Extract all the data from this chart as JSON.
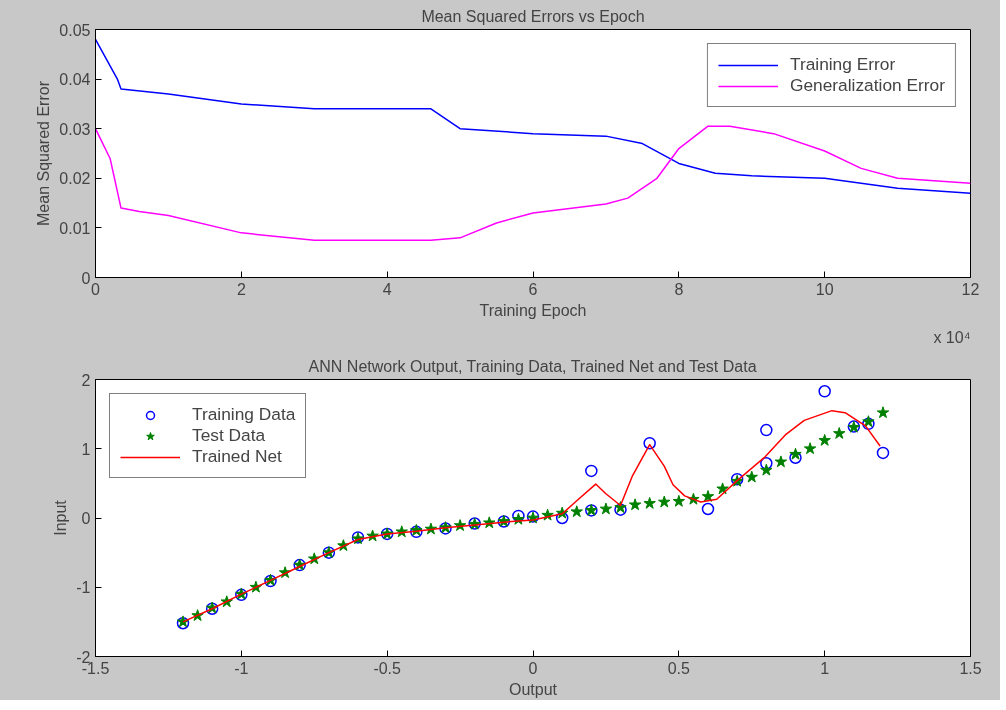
{
  "chart_data": [
    {
      "type": "line",
      "title": "Mean Squared Errors vs Epoch",
      "xlabel": "Training Epoch",
      "ylabel": "Mean Squared Error",
      "xlim": [
        0,
        12
      ],
      "xticks": [
        0,
        2,
        4,
        6,
        8,
        10,
        12
      ],
      "ylim": [
        0,
        0.05
      ],
      "yticks": [
        0,
        0.01,
        0.02,
        0.03,
        0.04,
        0.05
      ],
      "grid": false,
      "legend": "top right",
      "annotations": [
        "x 10⁴"
      ],
      "series": [
        {
          "name": "Training Error",
          "color": "#0000ff",
          "x": [
            0,
            0.3,
            0.35,
            1,
            2,
            3,
            4.6,
            5,
            6,
            7,
            7.5,
            8,
            8.5,
            9,
            10,
            11,
            12
          ],
          "values": [
            0.048,
            0.04,
            0.038,
            0.037,
            0.035,
            0.034,
            0.034,
            0.03,
            0.029,
            0.0285,
            0.027,
            0.023,
            0.021,
            0.0205,
            0.02,
            0.018,
            0.017
          ]
        },
        {
          "name": "Generalization Error",
          "color": "#ff00ff",
          "x": [
            0,
            0.2,
            0.35,
            0.6,
            1,
            2,
            3,
            4.6,
            5,
            5.5,
            6,
            7,
            7.3,
            7.7,
            8,
            8.4,
            8.7,
            9.3,
            10,
            10.5,
            11,
            12
          ],
          "values": [
            0.03,
            0.024,
            0.014,
            0.0133,
            0.0125,
            0.009,
            0.0075,
            0.0075,
            0.008,
            0.011,
            0.013,
            0.0148,
            0.016,
            0.02,
            0.026,
            0.0305,
            0.0305,
            0.029,
            0.0255,
            0.022,
            0.02,
            0.019
          ]
        }
      ]
    },
    {
      "type": "scatter",
      "title": "ANN Network Output, Training Data, Trained Net and Test Data",
      "xlabel": "Output",
      "ylabel": "Input",
      "xlim": [
        -1.5,
        1.5
      ],
      "xticks": [
        -1.5,
        -1,
        -0.5,
        0,
        0.5,
        1,
        1.5
      ],
      "ylim": [
        -2,
        2
      ],
      "yticks": [
        -2,
        -1,
        0,
        1,
        2
      ],
      "grid": false,
      "legend": "top left",
      "series": [
        {
          "name": "Training Data",
          "type": "scatter",
          "marker": "circle",
          "color": "#0000ff",
          "x": [
            -1.2,
            -1.1,
            -1.0,
            -0.9,
            -0.8,
            -0.7,
            -0.6,
            -0.5,
            -0.4,
            -0.3,
            -0.2,
            -0.1,
            -0.05,
            0,
            0.1,
            0.2,
            0.2,
            0.3,
            0.4,
            0.6,
            0.7,
            0.8,
            0.8,
            0.9,
            1.0,
            1.1,
            1.15,
            1.2
          ],
          "values": [
            -1.52,
            -1.31,
            -1.11,
            -0.91,
            -0.68,
            -0.5,
            -0.28,
            -0.23,
            -0.2,
            -0.15,
            -0.08,
            -0.05,
            0.03,
            0.02,
            0.0,
            0.68,
            0.11,
            0.12,
            1.08,
            0.13,
            0.56,
            1.27,
            0.79,
            0.87,
            1.83,
            1.32,
            1.36,
            0.94
          ]
        },
        {
          "name": "Test Data",
          "type": "scatter",
          "marker": "star",
          "color": "#008000",
          "x": [
            -1.2,
            -1.15,
            -1.1,
            -1.05,
            -1.0,
            -0.95,
            -0.9,
            -0.85,
            -0.8,
            -0.75,
            -0.7,
            -0.65,
            -0.6,
            -0.55,
            -0.5,
            -0.45,
            -0.4,
            -0.35,
            -0.3,
            -0.25,
            -0.2,
            -0.15,
            -0.1,
            -0.05,
            0,
            0.05,
            0.1,
            0.15,
            0.2,
            0.25,
            0.3,
            0.35,
            0.4,
            0.45,
            0.5,
            0.55,
            0.6,
            0.65,
            0.7,
            0.75,
            0.8,
            0.85,
            0.9,
            0.95,
            1.0,
            1.05,
            1.1,
            1.15,
            1.2
          ],
          "values": [
            -1.5,
            -1.41,
            -1.3,
            -1.21,
            -1.1,
            -1.0,
            -0.9,
            -0.79,
            -0.68,
            -0.59,
            -0.5,
            -0.4,
            -0.3,
            -0.26,
            -0.23,
            -0.2,
            -0.18,
            -0.16,
            -0.14,
            -0.11,
            -0.09,
            -0.07,
            -0.05,
            -0.02,
            0.0,
            0.04,
            0.07,
            0.09,
            0.11,
            0.13,
            0.15,
            0.19,
            0.21,
            0.23,
            0.24,
            0.27,
            0.31,
            0.42,
            0.53,
            0.59,
            0.69,
            0.81,
            0.92,
            1.0,
            1.12,
            1.22,
            1.31,
            1.39,
            1.52
          ]
        },
        {
          "name": "Trained Net",
          "type": "line",
          "color": "#ff0000",
          "x": [
            -1.2,
            -1.1,
            -1.0,
            -0.9,
            -0.8,
            -0.7,
            -0.6,
            -0.5,
            -0.4,
            -0.3,
            -0.2,
            -0.1,
            0,
            0.1,
            0.15,
            0.215,
            0.25,
            0.3,
            0.34,
            0.4,
            0.45,
            0.48,
            0.52,
            0.575,
            0.63,
            0.7,
            0.795,
            0.865,
            0.93,
            1.025,
            1.07,
            1.14,
            1.19
          ],
          "values": [
            -1.5,
            -1.31,
            -1.1,
            -0.9,
            -0.7,
            -0.5,
            -0.31,
            -0.23,
            -0.19,
            -0.14,
            -0.1,
            -0.06,
            -0.03,
            0.06,
            0.25,
            0.49,
            0.35,
            0.18,
            0.6,
            1.06,
            0.75,
            0.48,
            0.32,
            0.23,
            0.27,
            0.54,
            0.88,
            1.2,
            1.41,
            1.55,
            1.52,
            1.33,
            1.04
          ]
        }
      ]
    }
  ]
}
